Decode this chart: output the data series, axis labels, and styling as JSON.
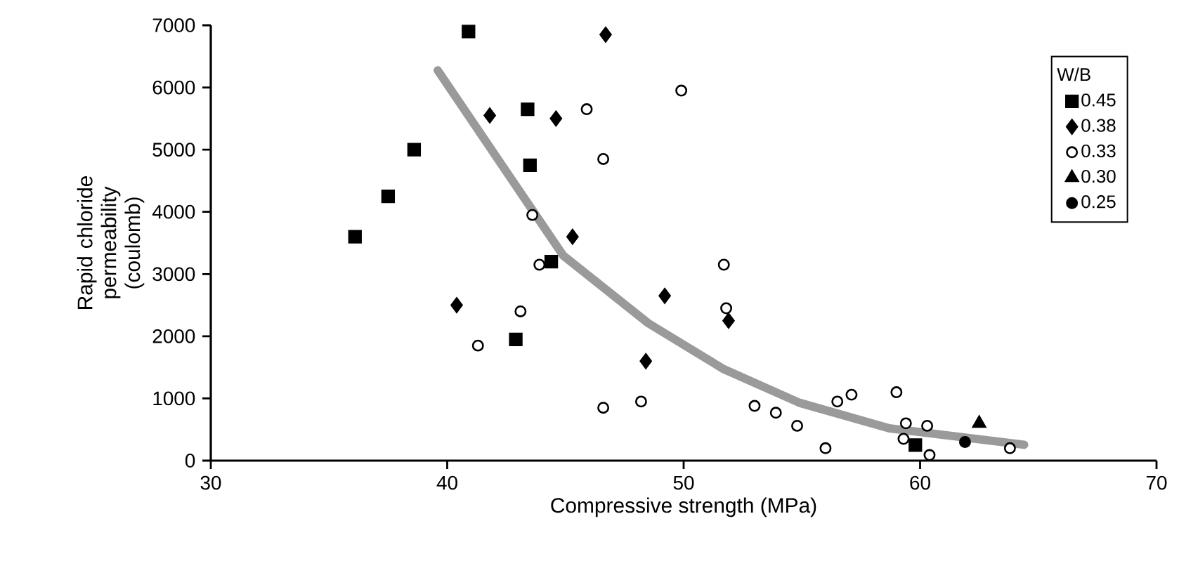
{
  "chart_data": {
    "type": "scatter",
    "xlabel": "Compressive strength (MPa)",
    "ylabel": "Rapid chloride permeability\n(coulomb)",
    "legend_title": "W/B",
    "legend": "top right",
    "grid": false,
    "xlim": [
      30,
      70
    ],
    "ylim": [
      0,
      7000
    ],
    "xticks": [
      30,
      40,
      50,
      60,
      70
    ],
    "yticks": [
      0,
      1000,
      2000,
      3000,
      4000,
      5000,
      6000,
      7000
    ],
    "series": [
      {
        "name": "0.45",
        "color": "#000000",
        "marker": "square",
        "x": [
          36.1,
          37.5,
          38.6,
          40.9,
          43.4,
          43.5,
          42.9,
          44.4,
          59.8
        ],
        "values": [
          3600,
          4250,
          5000,
          6900,
          5650,
          4750,
          1950,
          3200,
          250
        ]
      },
      {
        "name": "0.38",
        "color": "#000000",
        "marker": "diamond",
        "x": [
          41.8,
          44.6,
          40.4,
          46.7,
          45.3,
          49.2,
          51.9,
          48.4
        ],
        "values": [
          5550,
          5500,
          2500,
          6850,
          3600,
          2650,
          2250,
          1600
        ]
      },
      {
        "name": "0.33",
        "color": "#ffffff",
        "marker": "circle",
        "x": [
          43.6,
          43.9,
          43.1,
          41.3,
          49.9,
          45.9,
          46.6,
          51.7,
          51.8,
          46.6,
          48.2,
          53.0,
          53.9,
          54.8,
          56.0,
          56.5,
          57.1,
          59.0,
          59.4,
          60.3,
          59.3,
          60.4,
          63.8
        ],
        "values": [
          3950,
          3150,
          2400,
          1850,
          5950,
          5650,
          4850,
          3150,
          2450,
          850,
          950,
          880,
          770,
          560,
          200,
          950,
          1060,
          1100,
          600,
          560,
          350,
          90,
          200
        ]
      },
      {
        "name": "0.30",
        "color": "#000000",
        "marker": "triangle",
        "x": [
          62.5
        ],
        "values": [
          600
        ]
      },
      {
        "name": "0.25",
        "color": "#000000",
        "marker": "circle",
        "x": [
          61.9
        ],
        "values": [
          300
        ]
      },
      {
        "type": "line",
        "color": "#9a9a9a",
        "marker": "none",
        "line_style": "solid",
        "x": [
          39.6,
          44.9,
          48.5,
          51.7,
          54.9,
          58.7,
          64.4
        ],
        "values": [
          6275,
          3300,
          2210,
          1470,
          930,
          520,
          255
        ]
      }
    ]
  }
}
